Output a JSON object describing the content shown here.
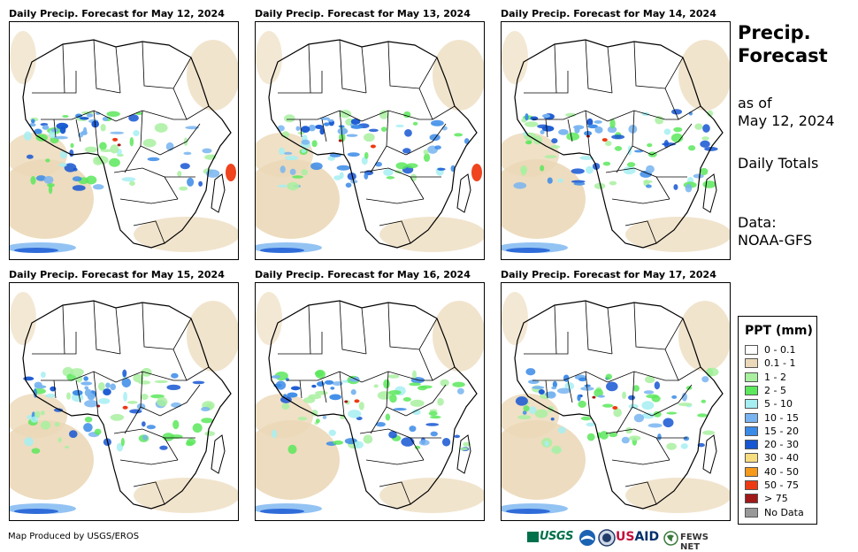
{
  "panels": [
    {
      "title": "Daily Precip. Forecast for May 12, 2024"
    },
    {
      "title": "Daily Precip. Forecast for May 13, 2024"
    },
    {
      "title": "Daily Precip. Forecast for May 14, 2024"
    },
    {
      "title": "Daily Precip. Forecast for May 15, 2024"
    },
    {
      "title": "Daily Precip. Forecast for May 16, 2024"
    },
    {
      "title": "Daily Precip. Forecast for May 17, 2024"
    }
  ],
  "side": {
    "title_line1": "Precip.",
    "title_line2": "Forecast",
    "asof_line1": "as of",
    "asof_line2": "May 12, 2024",
    "totals": "Daily Totals",
    "data_line1": "Data:",
    "data_line2": "NOAA-GFS"
  },
  "legend": {
    "title": "PPT (mm)",
    "items": [
      {
        "label": "0 - 0.1",
        "color": "#ffffff"
      },
      {
        "label": "0.1 - 1",
        "color": "#ebd8b8"
      },
      {
        "label": "1 - 2",
        "color": "#a8f0a0"
      },
      {
        "label": "2 - 5",
        "color": "#5ce85c"
      },
      {
        "label": "5 - 10",
        "color": "#a6eef2"
      },
      {
        "label": "10 - 15",
        "color": "#78b4f0"
      },
      {
        "label": "15 - 20",
        "color": "#3a8ae8"
      },
      {
        "label": "20 - 30",
        "color": "#1656d2"
      },
      {
        "label": "30 - 40",
        "color": "#f8dc80"
      },
      {
        "label": "40 - 50",
        "color": "#f59a1a"
      },
      {
        "label": "50 - 75",
        "color": "#ee3a12"
      },
      {
        "label": "> 75",
        "color": "#a01818"
      },
      {
        "label": "No Data",
        "color": "#999999"
      }
    ]
  },
  "credit": "Map Produced by USGS/EROS",
  "logos": {
    "usgs": "USGS",
    "usaid_prefix": "US",
    "usaid_suffix": "AID",
    "fews": "FEWS NET"
  }
}
